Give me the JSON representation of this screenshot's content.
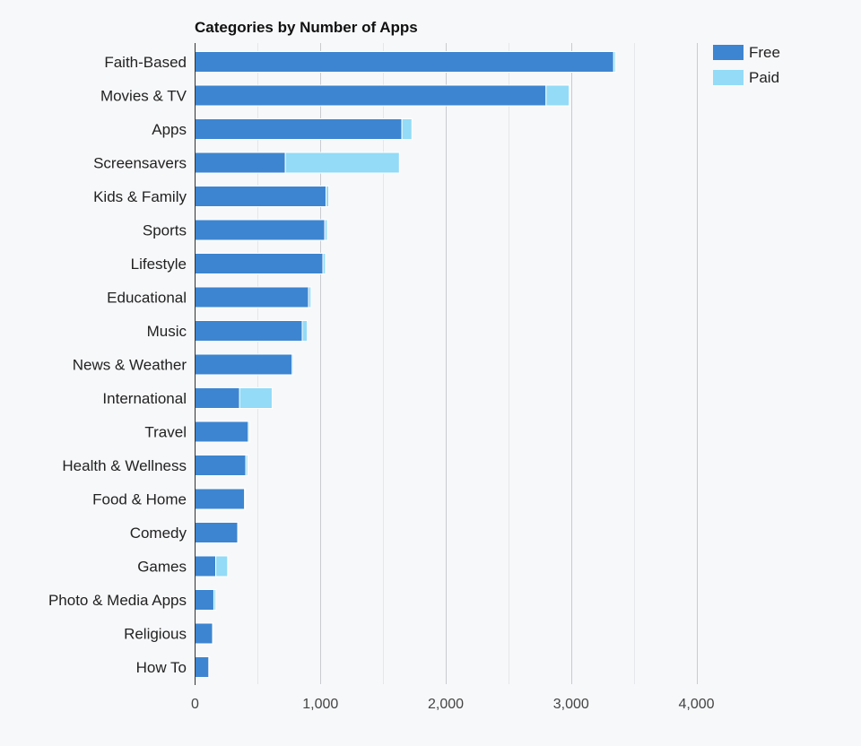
{
  "chart_data": {
    "type": "bar",
    "orientation": "horizontal",
    "stacked": true,
    "title": "Categories by Number of Apps",
    "xlabel": "",
    "ylabel": "",
    "xlim": [
      0,
      4000
    ],
    "xticks": [
      0,
      1000,
      2000,
      3000,
      4000
    ],
    "xtick_labels": [
      "0",
      "1,000",
      "2,000",
      "3,000",
      "4,000"
    ],
    "grid": true,
    "legend_position": "top-right",
    "categories": [
      "Faith-Based",
      "Movies & TV",
      "Apps",
      "Screensavers",
      "Kids & Family",
      "Sports",
      "Lifestyle",
      "Educational",
      "Music",
      "News & Weather",
      "International",
      "Travel",
      "Health & Wellness",
      "Food & Home",
      "Comedy",
      "Games",
      "Photo & Media Apps",
      "Religious",
      "How To"
    ],
    "series": [
      {
        "name": "Free",
        "color": "#3d85d0",
        "values": [
          3340,
          2800,
          1650,
          720,
          1045,
          1035,
          1020,
          905,
          855,
          775,
          355,
          425,
          405,
          395,
          340,
          165,
          150,
          140,
          110
        ]
      },
      {
        "name": "Paid",
        "color": "#93dbf7",
        "values": [
          15,
          185,
          80,
          910,
          22,
          20,
          20,
          20,
          40,
          10,
          260,
          10,
          15,
          5,
          5,
          95,
          15,
          5,
          5
        ]
      }
    ]
  }
}
